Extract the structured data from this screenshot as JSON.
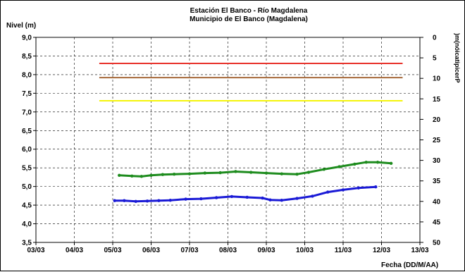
{
  "chart_data": {
    "type": "line",
    "title": "Estación El Banco - Río Magdalena",
    "subtitle": "Municipio de El Banco (Magdalena)",
    "ylabel": "Nivel (m)",
    "xlabel": "Fecha (DD/M/AA)",
    "y2label": ")m(nóicatipicerP",
    "ylim": [
      3.5,
      9.0
    ],
    "y2lim": [
      0,
      50
    ],
    "y2_inverted": true,
    "grid": true,
    "yticks": [
      "3,5",
      "4,0",
      "4,5",
      "5,0",
      "5,5",
      "6,0",
      "6,5",
      "7,0",
      "7,5",
      "8,0",
      "8,5",
      "9,0"
    ],
    "y2ticks": [
      "0",
      "5",
      "10",
      "15",
      "20",
      "25",
      "30",
      "35",
      "40",
      "45",
      "50"
    ],
    "x_categories": [
      "03/03",
      "04/03",
      "05/03",
      "06/03",
      "07/03",
      "08/03",
      "09/03",
      "10/03",
      "11/03",
      "12/03",
      "13/03"
    ],
    "thresholds": [
      {
        "value": 8.3,
        "color": "#e8312a",
        "x_start": 1.65,
        "x_end": 9.55
      },
      {
        "value": 7.92,
        "color": "#a66a3b",
        "x_start": 1.65,
        "x_end": 9.55
      },
      {
        "value": 7.3,
        "color": "#f5f50a",
        "x_start": 1.65,
        "x_end": 9.55
      }
    ],
    "series": [
      {
        "color": "#1e8c1e",
        "x": [
          2.17,
          2.5,
          2.75,
          3.0,
          3.3,
          3.6,
          4.0,
          4.4,
          4.8,
          5.2,
          5.6,
          6.0,
          6.4,
          6.8,
          7.1,
          7.5,
          7.9,
          8.3,
          8.6,
          8.9,
          9.25
        ],
        "values": [
          5.3,
          5.28,
          5.27,
          5.3,
          5.32,
          5.33,
          5.34,
          5.36,
          5.37,
          5.4,
          5.38,
          5.36,
          5.34,
          5.33,
          5.38,
          5.46,
          5.53,
          5.6,
          5.65,
          5.65,
          5.62
        ]
      },
      {
        "color": "#1a1ad6",
        "x": [
          2.05,
          2.3,
          2.6,
          2.9,
          3.2,
          3.5,
          3.9,
          4.3,
          4.7,
          5.1,
          5.5,
          5.9,
          6.1,
          6.4,
          6.8,
          7.2,
          7.6,
          8.0,
          8.4,
          8.85
        ],
        "values": [
          4.62,
          4.62,
          4.6,
          4.61,
          4.62,
          4.63,
          4.66,
          4.67,
          4.7,
          4.73,
          4.71,
          4.69,
          4.64,
          4.63,
          4.68,
          4.74,
          4.85,
          4.91,
          4.96,
          4.99
        ]
      }
    ]
  }
}
